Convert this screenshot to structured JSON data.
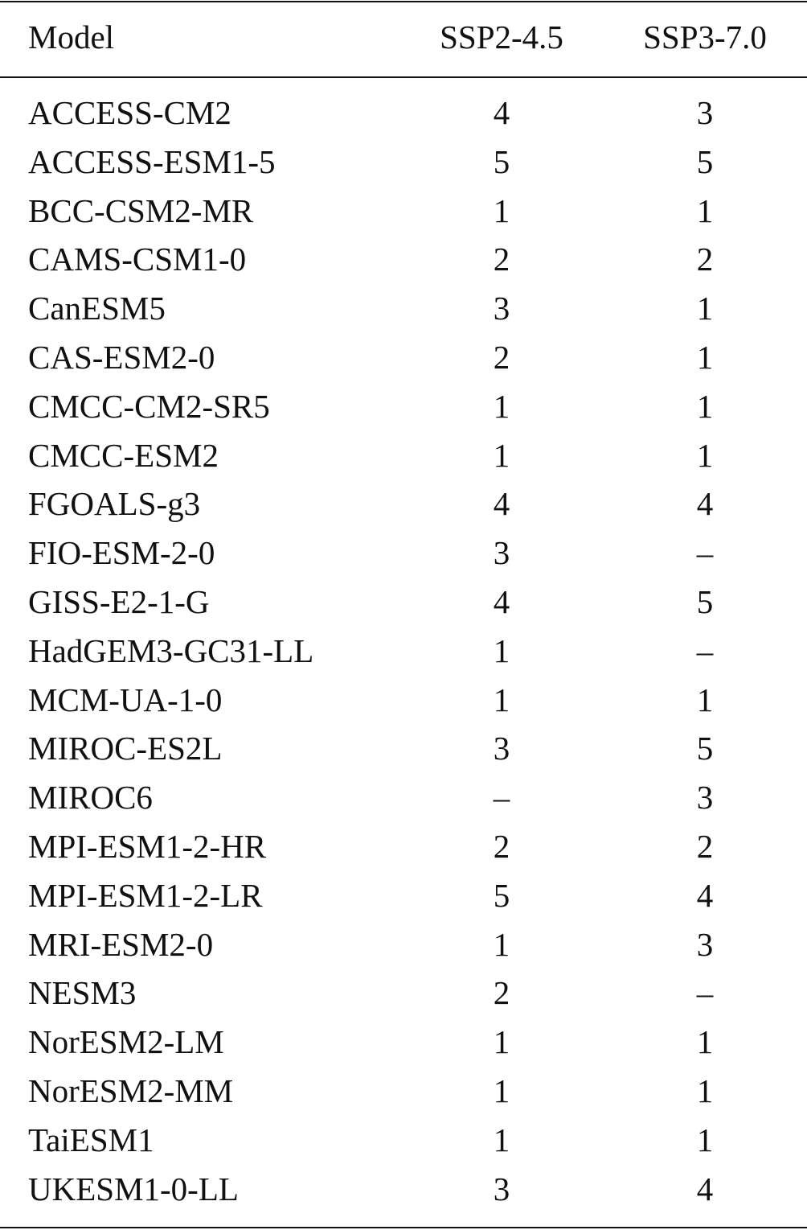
{
  "table": {
    "headers": [
      "Model",
      "SSP2-4.5",
      "SSP3-7.0"
    ],
    "rows": [
      [
        "ACCESS-CM2",
        "4",
        "3"
      ],
      [
        "ACCESS-ESM1-5",
        "5",
        "5"
      ],
      [
        "BCC-CSM2-MR",
        "1",
        "1"
      ],
      [
        "CAMS-CSM1-0",
        "2",
        "2"
      ],
      [
        "CanESM5",
        "3",
        "1"
      ],
      [
        "CAS-ESM2-0",
        "2",
        "1"
      ],
      [
        "CMCC-CM2-SR5",
        "1",
        "1"
      ],
      [
        "CMCC-ESM2",
        "1",
        "1"
      ],
      [
        "FGOALS-g3",
        "4",
        "4"
      ],
      [
        "FIO-ESM-2-0",
        "3",
        "–"
      ],
      [
        "GISS-E2-1-G",
        "4",
        "5"
      ],
      [
        "HadGEM3-GC31-LL",
        "1",
        "–"
      ],
      [
        "MCM-UA-1-0",
        "1",
        "1"
      ],
      [
        "MIROC-ES2L",
        "3",
        "5"
      ],
      [
        "MIROC6",
        "–",
        "3"
      ],
      [
        "MPI-ESM1-2-HR",
        "2",
        "2"
      ],
      [
        "MPI-ESM1-2-LR",
        "5",
        "4"
      ],
      [
        "MRI-ESM2-0",
        "1",
        "3"
      ],
      [
        "NESM3",
        "2",
        "–"
      ],
      [
        "NorESM2-LM",
        "1",
        "1"
      ],
      [
        "NorESM2-MM",
        "1",
        "1"
      ],
      [
        "TaiESM1",
        "1",
        "1"
      ],
      [
        "UKESM1-0-LL",
        "3",
        "4"
      ]
    ]
  }
}
